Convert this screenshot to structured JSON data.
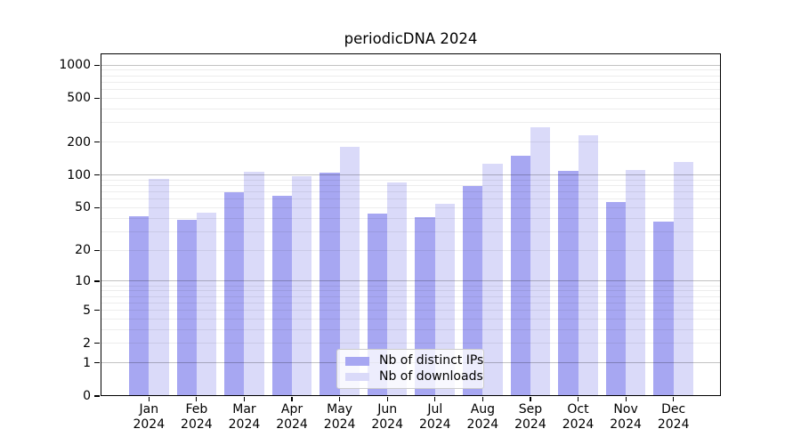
{
  "chart_data": {
    "type": "bar",
    "title": "periodicDNA 2024",
    "categories": [
      "Jan 2024",
      "Feb 2024",
      "Mar 2024",
      "Apr 2024",
      "May 2024",
      "Jun 2024",
      "Jul 2024",
      "Aug 2024",
      "Sep 2024",
      "Oct 2024",
      "Nov 2024",
      "Dec 2024"
    ],
    "series": [
      {
        "name": "Nb of distinct IPs",
        "color": "#a7a7f2",
        "values": [
          42,
          39,
          70,
          64,
          106,
          44,
          41,
          79,
          151,
          109,
          57,
          37
        ]
      },
      {
        "name": "Nb of downloads",
        "color": "#dadaf9",
        "values": [
          92,
          45,
          108,
          98,
          180,
          86,
          54,
          128,
          274,
          230,
          111,
          132
        ]
      }
    ],
    "xlabel": "",
    "ylabel": "",
    "yscale": "symlog(1+x)",
    "ylim": [
      0,
      1000
    ],
    "yticks": [
      0,
      1,
      2,
      5,
      10,
      20,
      50,
      100,
      200,
      500,
      1000
    ],
    "major_gridlines": [
      1,
      10,
      100,
      1000
    ],
    "minor_gridlines": [
      2,
      3,
      4,
      5,
      6,
      7,
      8,
      9,
      20,
      30,
      40,
      50,
      60,
      70,
      80,
      90,
      200,
      300,
      400,
      500,
      600,
      700,
      800,
      900
    ],
    "grid": "horizontal, both major and minor, drawn above bars",
    "legend": {
      "position": "inside lower-center",
      "entries": [
        "Nb of distinct IPs",
        "Nb of downloads"
      ]
    },
    "colors": {
      "distinct_ips_bar": "#a7a7f2",
      "downloads_bar": "#dadaf9",
      "axis": "#000000",
      "major_grid": "#bdbdbd",
      "minor_grid": "#ededed",
      "legend_border": "#cccccc"
    }
  }
}
